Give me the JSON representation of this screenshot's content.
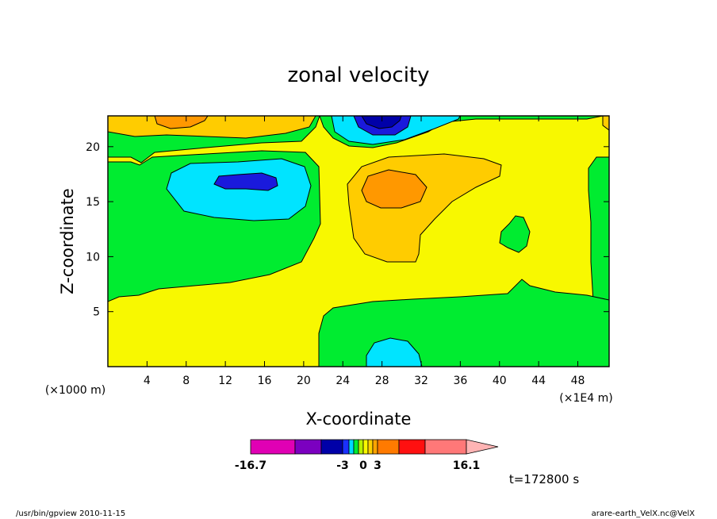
{
  "chart_data": {
    "type": "heatmap",
    "title": "zonal velocity",
    "xlabel": "X-coordinate",
    "ylabel": "Z-coordinate",
    "x_unit_left": "(×1000 m)",
    "x_unit_right": "(×1E4 m)",
    "x_ticks": [
      4,
      8,
      12,
      16,
      20,
      24,
      28,
      32,
      36,
      40,
      44,
      48
    ],
    "y_ticks": [
      5,
      10,
      15,
      20
    ],
    "xlim": [
      0,
      51.2
    ],
    "ylim": [
      0,
      22.8
    ],
    "colorbar": {
      "colors": [
        "#e000b4",
        "#7b00c0",
        "#0000a8",
        "#1a30ff",
        "#00d8ff",
        "#00ec30",
        "#b8f000",
        "#f8f800",
        "#ffd000",
        "#ffa400",
        "#ff7a00",
        "#ff1010",
        "#ff7878",
        "#ffb4b4"
      ],
      "tick_labels": [
        "-16.7",
        "-3",
        "0",
        "3",
        "16.1"
      ]
    },
    "regions": [
      {
        "level": "0 to 1.5",
        "color": "#f8f800"
      },
      {
        "level": "-1.5 to 0",
        "color": "#00ec30"
      },
      {
        "level": "-3 to -1.5",
        "color": "#00e4ff"
      },
      {
        "level": "below -3",
        "color": "#1a1adc"
      },
      {
        "level": "1.5 to 3",
        "color": "#ffcc00"
      },
      {
        "level": "above 3",
        "color": "#ff9800"
      }
    ]
  },
  "time_label": "t=172800 s",
  "footer_left": "/usr/bin/gpview  2010-11-15",
  "footer_right": "arare-earth_VelX.nc@VelX"
}
